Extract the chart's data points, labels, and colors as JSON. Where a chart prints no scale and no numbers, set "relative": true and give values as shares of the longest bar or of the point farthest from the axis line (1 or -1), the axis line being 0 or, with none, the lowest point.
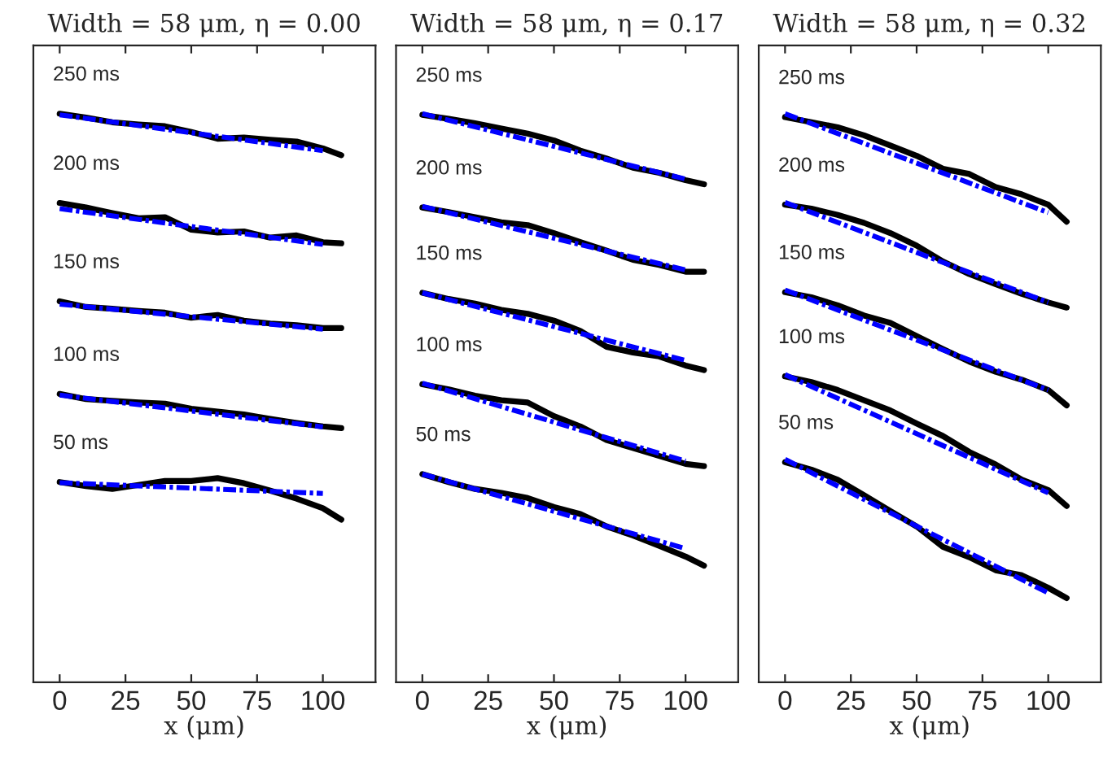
{
  "chart_data": [
    {
      "type": "line",
      "title": "Width = 58 μm, η = 0.00",
      "xlabel": "x (μm)",
      "relative": true,
      "xlim": [
        -10,
        120
      ],
      "xticks": [
        0,
        25,
        50,
        75,
        100
      ],
      "tick_labels": "x",
      "grid": false,
      "legend": false,
      "annotations": [
        "250 ms",
        "200 ms",
        "150 ms",
        "100 ms",
        "50 ms"
      ],
      "series": [
        {
          "color": "#000000",
          "line_style": "solid",
          "x": [
            0,
            10,
            20,
            30,
            40,
            50,
            60,
            70,
            80,
            90,
            100,
            107
          ],
          "values": [
            1.0,
            0.993,
            0.985,
            0.981,
            0.978,
            0.968,
            0.956,
            0.958,
            0.954,
            0.951,
            0.939,
            0.927
          ]
        },
        {
          "color": "#0000ff",
          "line_style": "dashed",
          "x": [
            0,
            100
          ],
          "values": [
            0.998,
            0.935
          ]
        },
        {
          "color": "#000000",
          "line_style": "solid",
          "x": [
            0,
            10,
            20,
            30,
            40,
            50,
            60,
            70,
            80,
            90,
            100,
            107
          ],
          "values": [
            0.843,
            0.835,
            0.825,
            0.816,
            0.818,
            0.796,
            0.791,
            0.793,
            0.782,
            0.786,
            0.774,
            0.772
          ]
        },
        {
          "color": "#0000ff",
          "line_style": "dashed",
          "x": [
            0,
            100
          ],
          "values": [
            0.833,
            0.77
          ]
        },
        {
          "color": "#000000",
          "line_style": "solid",
          "x": [
            0,
            10,
            20,
            30,
            40,
            50,
            60,
            70,
            80,
            90,
            100,
            107
          ],
          "values": [
            0.67,
            0.66,
            0.657,
            0.653,
            0.65,
            0.641,
            0.646,
            0.636,
            0.631,
            0.628,
            0.623,
            0.623
          ]
        },
        {
          "color": "#0000ff",
          "line_style": "dashed",
          "x": [
            0,
            100
          ],
          "values": [
            0.665,
            0.621
          ]
        },
        {
          "color": "#000000",
          "line_style": "solid",
          "x": [
            0,
            10,
            20,
            30,
            40,
            50,
            60,
            70,
            80,
            90,
            100,
            107
          ],
          "values": [
            0.507,
            0.498,
            0.495,
            0.492,
            0.49,
            0.481,
            0.476,
            0.471,
            0.463,
            0.456,
            0.45,
            0.447
          ]
        },
        {
          "color": "#0000ff",
          "line_style": "dashed",
          "x": [
            0,
            100
          ],
          "values": [
            0.505,
            0.449
          ]
        },
        {
          "color": "#000000",
          "line_style": "solid",
          "x": [
            0,
            10,
            20,
            30,
            40,
            50,
            60,
            70,
            80,
            90,
            100,
            107
          ],
          "values": [
            0.352,
            0.345,
            0.34,
            0.347,
            0.354,
            0.354,
            0.359,
            0.35,
            0.337,
            0.323,
            0.306,
            0.286
          ]
        },
        {
          "color": "#0000ff",
          "line_style": "dashed",
          "x": [
            0,
            100
          ],
          "values": [
            0.351,
            0.332
          ]
        }
      ]
    },
    {
      "type": "line",
      "title": "Width = 58 μm, η = 0.17",
      "xlabel": "x (μm)",
      "relative": true,
      "xlim": [
        -10,
        120
      ],
      "xticks": [
        0,
        25,
        50,
        75,
        100
      ],
      "tick_labels": "x",
      "grid": false,
      "legend": false,
      "annotations": [
        "250 ms",
        "200 ms",
        "150 ms",
        "100 ms",
        "50 ms"
      ],
      "series": [
        {
          "color": "#000000",
          "line_style": "solid",
          "x": [
            0,
            10,
            20,
            30,
            40,
            50,
            60,
            70,
            80,
            90,
            100,
            107
          ],
          "values": [
            0.998,
            0.991,
            0.983,
            0.974,
            0.965,
            0.953,
            0.935,
            0.921,
            0.905,
            0.896,
            0.883,
            0.876
          ]
        },
        {
          "color": "#0000ff",
          "line_style": "dashed",
          "x": [
            0,
            100
          ],
          "values": [
            1.0,
            0.885
          ]
        },
        {
          "color": "#000000",
          "line_style": "solid",
          "x": [
            0,
            10,
            20,
            30,
            40,
            50,
            60,
            70,
            80,
            90,
            100,
            107
          ],
          "values": [
            0.835,
            0.827,
            0.818,
            0.809,
            0.804,
            0.79,
            0.774,
            0.759,
            0.743,
            0.734,
            0.722,
            0.722
          ]
        },
        {
          "color": "#0000ff",
          "line_style": "dashed",
          "x": [
            0,
            100
          ],
          "values": [
            0.837,
            0.725
          ]
        },
        {
          "color": "#000000",
          "line_style": "solid",
          "x": [
            0,
            10,
            20,
            30,
            40,
            50,
            60,
            70,
            80,
            90,
            100,
            107
          ],
          "values": [
            0.685,
            0.674,
            0.666,
            0.655,
            0.648,
            0.636,
            0.618,
            0.59,
            0.58,
            0.573,
            0.557,
            0.549
          ]
        },
        {
          "color": "#0000ff",
          "line_style": "dashed",
          "x": [
            0,
            100
          ],
          "values": [
            0.685,
            0.566
          ]
        },
        {
          "color": "#000000",
          "line_style": "solid",
          "x": [
            0,
            10,
            20,
            30,
            40,
            50,
            60,
            70,
            80,
            90,
            100,
            107
          ],
          "values": [
            0.524,
            0.515,
            0.504,
            0.496,
            0.492,
            0.468,
            0.45,
            0.426,
            0.412,
            0.398,
            0.384,
            0.38
          ]
        },
        {
          "color": "#0000ff",
          "line_style": "dashed",
          "x": [
            0,
            100
          ],
          "values": [
            0.526,
            0.389
          ]
        },
        {
          "color": "#000000",
          "line_style": "solid",
          "x": [
            0,
            10,
            20,
            30,
            40,
            50,
            60,
            70,
            80,
            90,
            100,
            107
          ],
          "values": [
            0.366,
            0.352,
            0.34,
            0.333,
            0.324,
            0.308,
            0.296,
            0.274,
            0.258,
            0.24,
            0.221,
            0.205
          ]
        },
        {
          "color": "#0000ff",
          "line_style": "dashed",
          "x": [
            0,
            100
          ],
          "values": [
            0.366,
            0.235
          ]
        }
      ]
    },
    {
      "type": "line",
      "title": "Width = 58 μm, η = 0.32",
      "xlabel": "x (μm)",
      "relative": true,
      "xlim": [
        -10,
        120
      ],
      "xticks": [
        0,
        25,
        50,
        75,
        100
      ],
      "tick_labels": "x",
      "grid": false,
      "legend": false,
      "annotations": [
        "250 ms",
        "200 ms",
        "150 ms",
        "100 ms",
        "50 ms"
      ],
      "series": [
        {
          "color": "#000000",
          "line_style": "solid",
          "x": [
            0,
            10,
            20,
            30,
            40,
            50,
            60,
            70,
            80,
            90,
            100,
            107
          ],
          "values": [
            0.994,
            0.985,
            0.976,
            0.962,
            0.944,
            0.926,
            0.903,
            0.894,
            0.871,
            0.858,
            0.84,
            0.81
          ]
        },
        {
          "color": "#0000ff",
          "line_style": "dashed",
          "x": [
            0,
            100
          ],
          "values": [
            1.0,
            0.826
          ]
        },
        {
          "color": "#000000",
          "line_style": "solid",
          "x": [
            0,
            10,
            20,
            30,
            40,
            50,
            60,
            70,
            80,
            90,
            100,
            107
          ],
          "values": [
            0.84,
            0.833,
            0.822,
            0.808,
            0.79,
            0.768,
            0.74,
            0.718,
            0.7,
            0.683,
            0.668,
            0.659
          ]
        },
        {
          "color": "#0000ff",
          "line_style": "dashed",
          "x": [
            0,
            100
          ],
          "values": [
            0.844,
            0.668
          ]
        },
        {
          "color": "#000000",
          "line_style": "solid",
          "x": [
            0,
            10,
            20,
            30,
            40,
            50,
            60,
            70,
            80,
            90,
            100,
            107
          ],
          "values": [
            0.686,
            0.677,
            0.663,
            0.645,
            0.632,
            0.609,
            0.586,
            0.564,
            0.546,
            0.532,
            0.514,
            0.487
          ]
        },
        {
          "color": "#0000ff",
          "line_style": "dashed",
          "x": [
            0,
            100
          ],
          "values": [
            0.69,
            0.514
          ]
        },
        {
          "color": "#000000",
          "line_style": "solid",
          "x": [
            0,
            10,
            20,
            30,
            40,
            50,
            60,
            70,
            80,
            90,
            100,
            107
          ],
          "values": [
            0.538,
            0.528,
            0.514,
            0.496,
            0.478,
            0.455,
            0.433,
            0.405,
            0.383,
            0.356,
            0.338,
            0.31
          ]
        },
        {
          "color": "#0000ff",
          "line_style": "dashed",
          "x": [
            0,
            100
          ],
          "values": [
            0.541,
            0.333
          ]
        },
        {
          "color": "#000000",
          "line_style": "solid",
          "x": [
            0,
            10,
            20,
            30,
            40,
            50,
            60,
            70,
            80,
            90,
            100,
            107
          ],
          "values": [
            0.387,
            0.374,
            0.356,
            0.329,
            0.301,
            0.274,
            0.238,
            0.22,
            0.197,
            0.188,
            0.166,
            0.148
          ]
        },
        {
          "color": "#0000ff",
          "line_style": "dashed",
          "x": [
            0,
            100
          ],
          "values": [
            0.392,
            0.157
          ]
        }
      ]
    }
  ]
}
